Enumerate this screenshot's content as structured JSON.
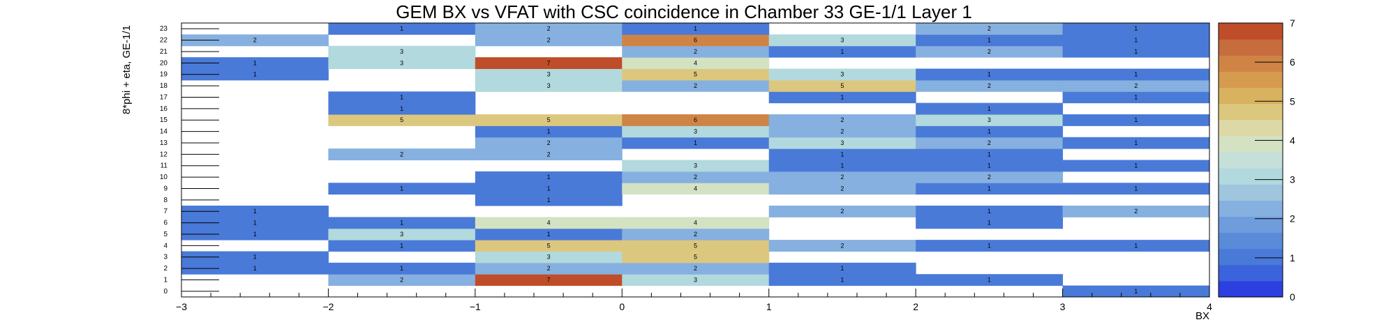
{
  "chart_data": {
    "type": "heatmap",
    "title": "GEM BX vs VFAT with CSC coincidence in Chamber 33 GE-1/1 Layer 1",
    "xlabel": "BX",
    "ylabel": "8*phi + eta, GE-1/1",
    "xlim": [
      -3,
      4
    ],
    "ylim": [
      0,
      24
    ],
    "x_ticks": [
      "−3",
      "−2",
      "−1",
      "0",
      "1",
      "2",
      "3",
      "4"
    ],
    "y_ticks": [
      "0",
      "1",
      "2",
      "3",
      "4",
      "5",
      "6",
      "7",
      "8",
      "9",
      "10",
      "11",
      "12",
      "13",
      "14",
      "15",
      "16",
      "17",
      "18",
      "19",
      "20",
      "21",
      "22",
      "23"
    ],
    "colorbar": {
      "min": 0,
      "max": 7,
      "ticks": [
        "0",
        "1",
        "2",
        "3",
        "4",
        "5",
        "6",
        "7"
      ]
    },
    "x_bins": [
      -3,
      -2,
      -1,
      0,
      1,
      2,
      3
    ],
    "cells": [
      {
        "x": -3,
        "y": 1,
        "v": 0
      },
      {
        "x": -2,
        "y": 1,
        "v": 2
      },
      {
        "x": -1,
        "y": 1,
        "v": 7
      },
      {
        "x": 0,
        "y": 1,
        "v": 3
      },
      {
        "x": 1,
        "y": 1,
        "v": 1
      },
      {
        "x": 2,
        "y": 1,
        "v": 1
      },
      {
        "x": -3,
        "y": 2,
        "v": 1
      },
      {
        "x": -2,
        "y": 2,
        "v": 1
      },
      {
        "x": -1,
        "y": 2,
        "v": 2
      },
      {
        "x": 0,
        "y": 2,
        "v": 2
      },
      {
        "x": 1,
        "y": 2,
        "v": 1
      },
      {
        "x": -3,
        "y": 3,
        "v": 1
      },
      {
        "x": -1,
        "y": 3,
        "v": 3
      },
      {
        "x": 0,
        "y": 3,
        "v": 5
      },
      {
        "x": -2,
        "y": 4,
        "v": 1
      },
      {
        "x": -1,
        "y": 4,
        "v": 5
      },
      {
        "x": 0,
        "y": 4,
        "v": 5
      },
      {
        "x": 1,
        "y": 4,
        "v": 2
      },
      {
        "x": 2,
        "y": 4,
        "v": 1
      },
      {
        "x": 3,
        "y": 4,
        "v": 1
      },
      {
        "x": -3,
        "y": 5,
        "v": 1
      },
      {
        "x": -2,
        "y": 5,
        "v": 3
      },
      {
        "x": -1,
        "y": 5,
        "v": 1
      },
      {
        "x": 0,
        "y": 5,
        "v": 2
      },
      {
        "x": -3,
        "y": 6,
        "v": 1
      },
      {
        "x": -2,
        "y": 6,
        "v": 1
      },
      {
        "x": -1,
        "y": 6,
        "v": 4
      },
      {
        "x": 0,
        "y": 6,
        "v": 4
      },
      {
        "x": 2,
        "y": 6,
        "v": 1
      },
      {
        "x": -3,
        "y": 7,
        "v": 1
      },
      {
        "x": 1,
        "y": 7,
        "v": 2
      },
      {
        "x": 2,
        "y": 7,
        "v": 1
      },
      {
        "x": 3,
        "y": 7,
        "v": 2
      },
      {
        "x": -1,
        "y": 8,
        "v": 1
      },
      {
        "x": -2,
        "y": 9,
        "v": 1
      },
      {
        "x": -1,
        "y": 9,
        "v": 1
      },
      {
        "x": 0,
        "y": 9,
        "v": 4
      },
      {
        "x": 1,
        "y": 9,
        "v": 2
      },
      {
        "x": 2,
        "y": 9,
        "v": 1
      },
      {
        "x": 3,
        "y": 9,
        "v": 1
      },
      {
        "x": -1,
        "y": 10,
        "v": 1
      },
      {
        "x": 0,
        "y": 10,
        "v": 2
      },
      {
        "x": 1,
        "y": 10,
        "v": 2
      },
      {
        "x": 2,
        "y": 10,
        "v": 2
      },
      {
        "x": 0,
        "y": 11,
        "v": 3
      },
      {
        "x": 1,
        "y": 11,
        "v": 1
      },
      {
        "x": 2,
        "y": 11,
        "v": 1
      },
      {
        "x": 3,
        "y": 11,
        "v": 1
      },
      {
        "x": -2,
        "y": 12,
        "v": 2
      },
      {
        "x": -1,
        "y": 12,
        "v": 2
      },
      {
        "x": 1,
        "y": 12,
        "v": 1
      },
      {
        "x": 2,
        "y": 12,
        "v": 1
      },
      {
        "x": -1,
        "y": 13,
        "v": 2
      },
      {
        "x": 0,
        "y": 13,
        "v": 1
      },
      {
        "x": 1,
        "y": 13,
        "v": 3
      },
      {
        "x": 2,
        "y": 13,
        "v": 2
      },
      {
        "x": 3,
        "y": 13,
        "v": 1
      },
      {
        "x": -1,
        "y": 14,
        "v": 1
      },
      {
        "x": 0,
        "y": 14,
        "v": 3
      },
      {
        "x": 1,
        "y": 14,
        "v": 2
      },
      {
        "x": 2,
        "y": 14,
        "v": 1
      },
      {
        "x": -2,
        "y": 15,
        "v": 5
      },
      {
        "x": -1,
        "y": 15,
        "v": 5
      },
      {
        "x": 0,
        "y": 15,
        "v": 6
      },
      {
        "x": 1,
        "y": 15,
        "v": 2
      },
      {
        "x": 2,
        "y": 15,
        "v": 3
      },
      {
        "x": 3,
        "y": 15,
        "v": 1
      },
      {
        "x": -2,
        "y": 16,
        "v": 1
      },
      {
        "x": 2,
        "y": 16,
        "v": 1
      },
      {
        "x": -2,
        "y": 17,
        "v": 1
      },
      {
        "x": 1,
        "y": 17,
        "v": 1
      },
      {
        "x": 3,
        "y": 17,
        "v": 1
      },
      {
        "x": -1,
        "y": 18,
        "v": 3
      },
      {
        "x": 0,
        "y": 18,
        "v": 2
      },
      {
        "x": 1,
        "y": 18,
        "v": 5
      },
      {
        "x": 2,
        "y": 18,
        "v": 2
      },
      {
        "x": 3,
        "y": 18,
        "v": 2
      },
      {
        "x": -3,
        "y": 19,
        "v": 1
      },
      {
        "x": -1,
        "y": 19,
        "v": 3
      },
      {
        "x": 0,
        "y": 19,
        "v": 5
      },
      {
        "x": 1,
        "y": 19,
        "v": 3
      },
      {
        "x": 2,
        "y": 19,
        "v": 1
      },
      {
        "x": 3,
        "y": 19,
        "v": 1
      },
      {
        "x": -3,
        "y": 20,
        "v": 1
      },
      {
        "x": -2,
        "y": 20,
        "v": 3
      },
      {
        "x": -1,
        "y": 20,
        "v": 7
      },
      {
        "x": 0,
        "y": 20,
        "v": 4
      },
      {
        "x": -2,
        "y": 21,
        "v": 3
      },
      {
        "x": 0,
        "y": 21,
        "v": 2
      },
      {
        "x": 1,
        "y": 21,
        "v": 1
      },
      {
        "x": 2,
        "y": 21,
        "v": 2
      },
      {
        "x": 3,
        "y": 21,
        "v": 1
      },
      {
        "x": -3,
        "y": 22,
        "v": 2
      },
      {
        "x": -1,
        "y": 22,
        "v": 2
      },
      {
        "x": 0,
        "y": 22,
        "v": 6
      },
      {
        "x": 1,
        "y": 22,
        "v": 3
      },
      {
        "x": 2,
        "y": 22,
        "v": 1
      },
      {
        "x": 3,
        "y": 22,
        "v": 1
      },
      {
        "x": -2,
        "y": 23,
        "v": 1
      },
      {
        "x": -1,
        "y": 23,
        "v": 2
      },
      {
        "x": 0,
        "y": 23,
        "v": 1
      },
      {
        "x": 2,
        "y": 23,
        "v": 2
      },
      {
        "x": 3,
        "y": 23,
        "v": 1
      },
      {
        "x": 3,
        "y": 0,
        "v": 1
      }
    ],
    "hidden_label_cells": [
      [
        -3,
        1
      ]
    ],
    "grid": false,
    "colormap": [
      "#2c40e0",
      "#3a63dc",
      "#4a7ad8",
      "#5a8bd8",
      "#6f9cdc",
      "#86b0df",
      "#9fc6de",
      "#b2d9dd",
      "#c4e0d8",
      "#d4e2c4",
      "#dcd9a6",
      "#dcc77e",
      "#d8b25e",
      "#d59b4f",
      "#cf8446",
      "#c66c3d",
      "#bf4d2a"
    ]
  }
}
